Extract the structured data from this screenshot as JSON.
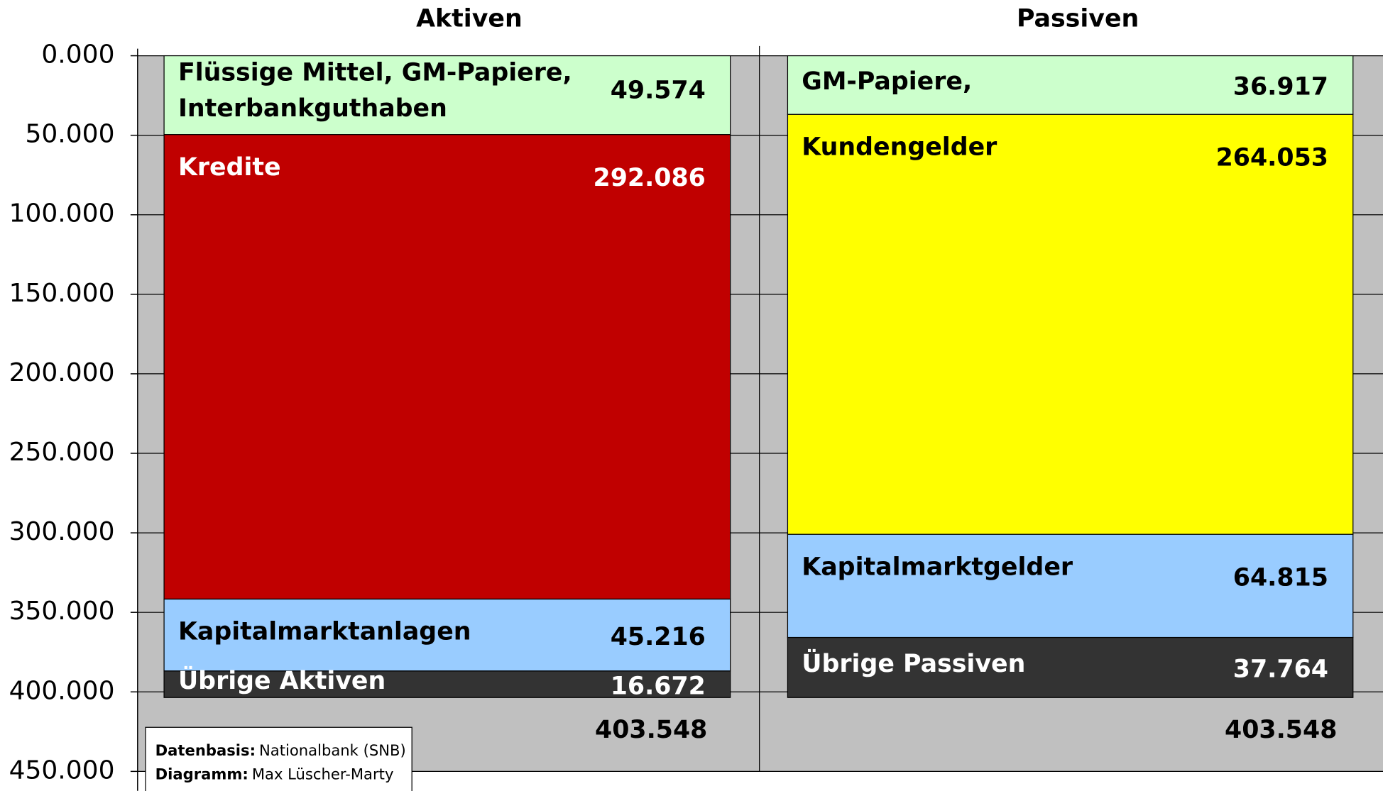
{
  "chart_data": {
    "type": "stacked_bar",
    "categories": [
      "Aktiven",
      "Passiven"
    ],
    "ylim": [
      0,
      450000
    ],
    "y_inverted": true,
    "grid": true,
    "background": "#c0c0c0",
    "yticks": [
      {
        "value": 0,
        "label": "0.000"
      },
      {
        "value": 50000,
        "label": "50.000"
      },
      {
        "value": 100000,
        "label": "100.000"
      },
      {
        "value": 150000,
        "label": "150.000"
      },
      {
        "value": 200000,
        "label": "200.000"
      },
      {
        "value": 250000,
        "label": "250.000"
      },
      {
        "value": 300000,
        "label": "300.000"
      },
      {
        "value": 350000,
        "label": "350.000"
      },
      {
        "value": 400000,
        "label": "400.000"
      },
      {
        "value": 450000,
        "label": "450.000"
      }
    ],
    "bars": [
      {
        "segments": [
          {
            "name": "Flüssige Mittel, GM-Papiere,\nInterbankguthaben",
            "color": "#ccffcc",
            "value": 49574,
            "value_label": "49.574"
          },
          {
            "name": "Kredite",
            "color": "#c00000",
            "value": 292086,
            "value_label": "292.086"
          },
          {
            "name": "Kapitalmarktanlagen",
            "color": "#99ccff",
            "value": 45216,
            "value_label": "45.216"
          },
          {
            "name": "Übrige Aktiven",
            "color": "#333333",
            "value": 16672,
            "value_label": "16.672"
          }
        ]
      },
      {
        "segments": [
          {
            "name": "GM-Papiere,",
            "color": "#ccffcc",
            "value": 36917,
            "value_label": "36.917"
          },
          {
            "name": "Kundengelder",
            "color": "#ffff00",
            "value": 264053,
            "value_label": "264.053"
          },
          {
            "name": "Kapitalmarktgelder",
            "color": "#99ccff",
            "value": 64815,
            "value_label": "64.815"
          },
          {
            "name": "Übrige Passiven",
            "color": "#333333",
            "value": 37764,
            "value_label": "37.764"
          }
        ]
      }
    ],
    "totals": [
      403548,
      403548
    ],
    "total_labels": [
      "403.548",
      "403.548"
    ],
    "notes": [
      {
        "key": "Datenbasis:",
        "text": "Nationalbank (SNB)"
      },
      {
        "key": "Diagramm:",
        "text": "Max Lüscher-Marty"
      }
    ]
  }
}
